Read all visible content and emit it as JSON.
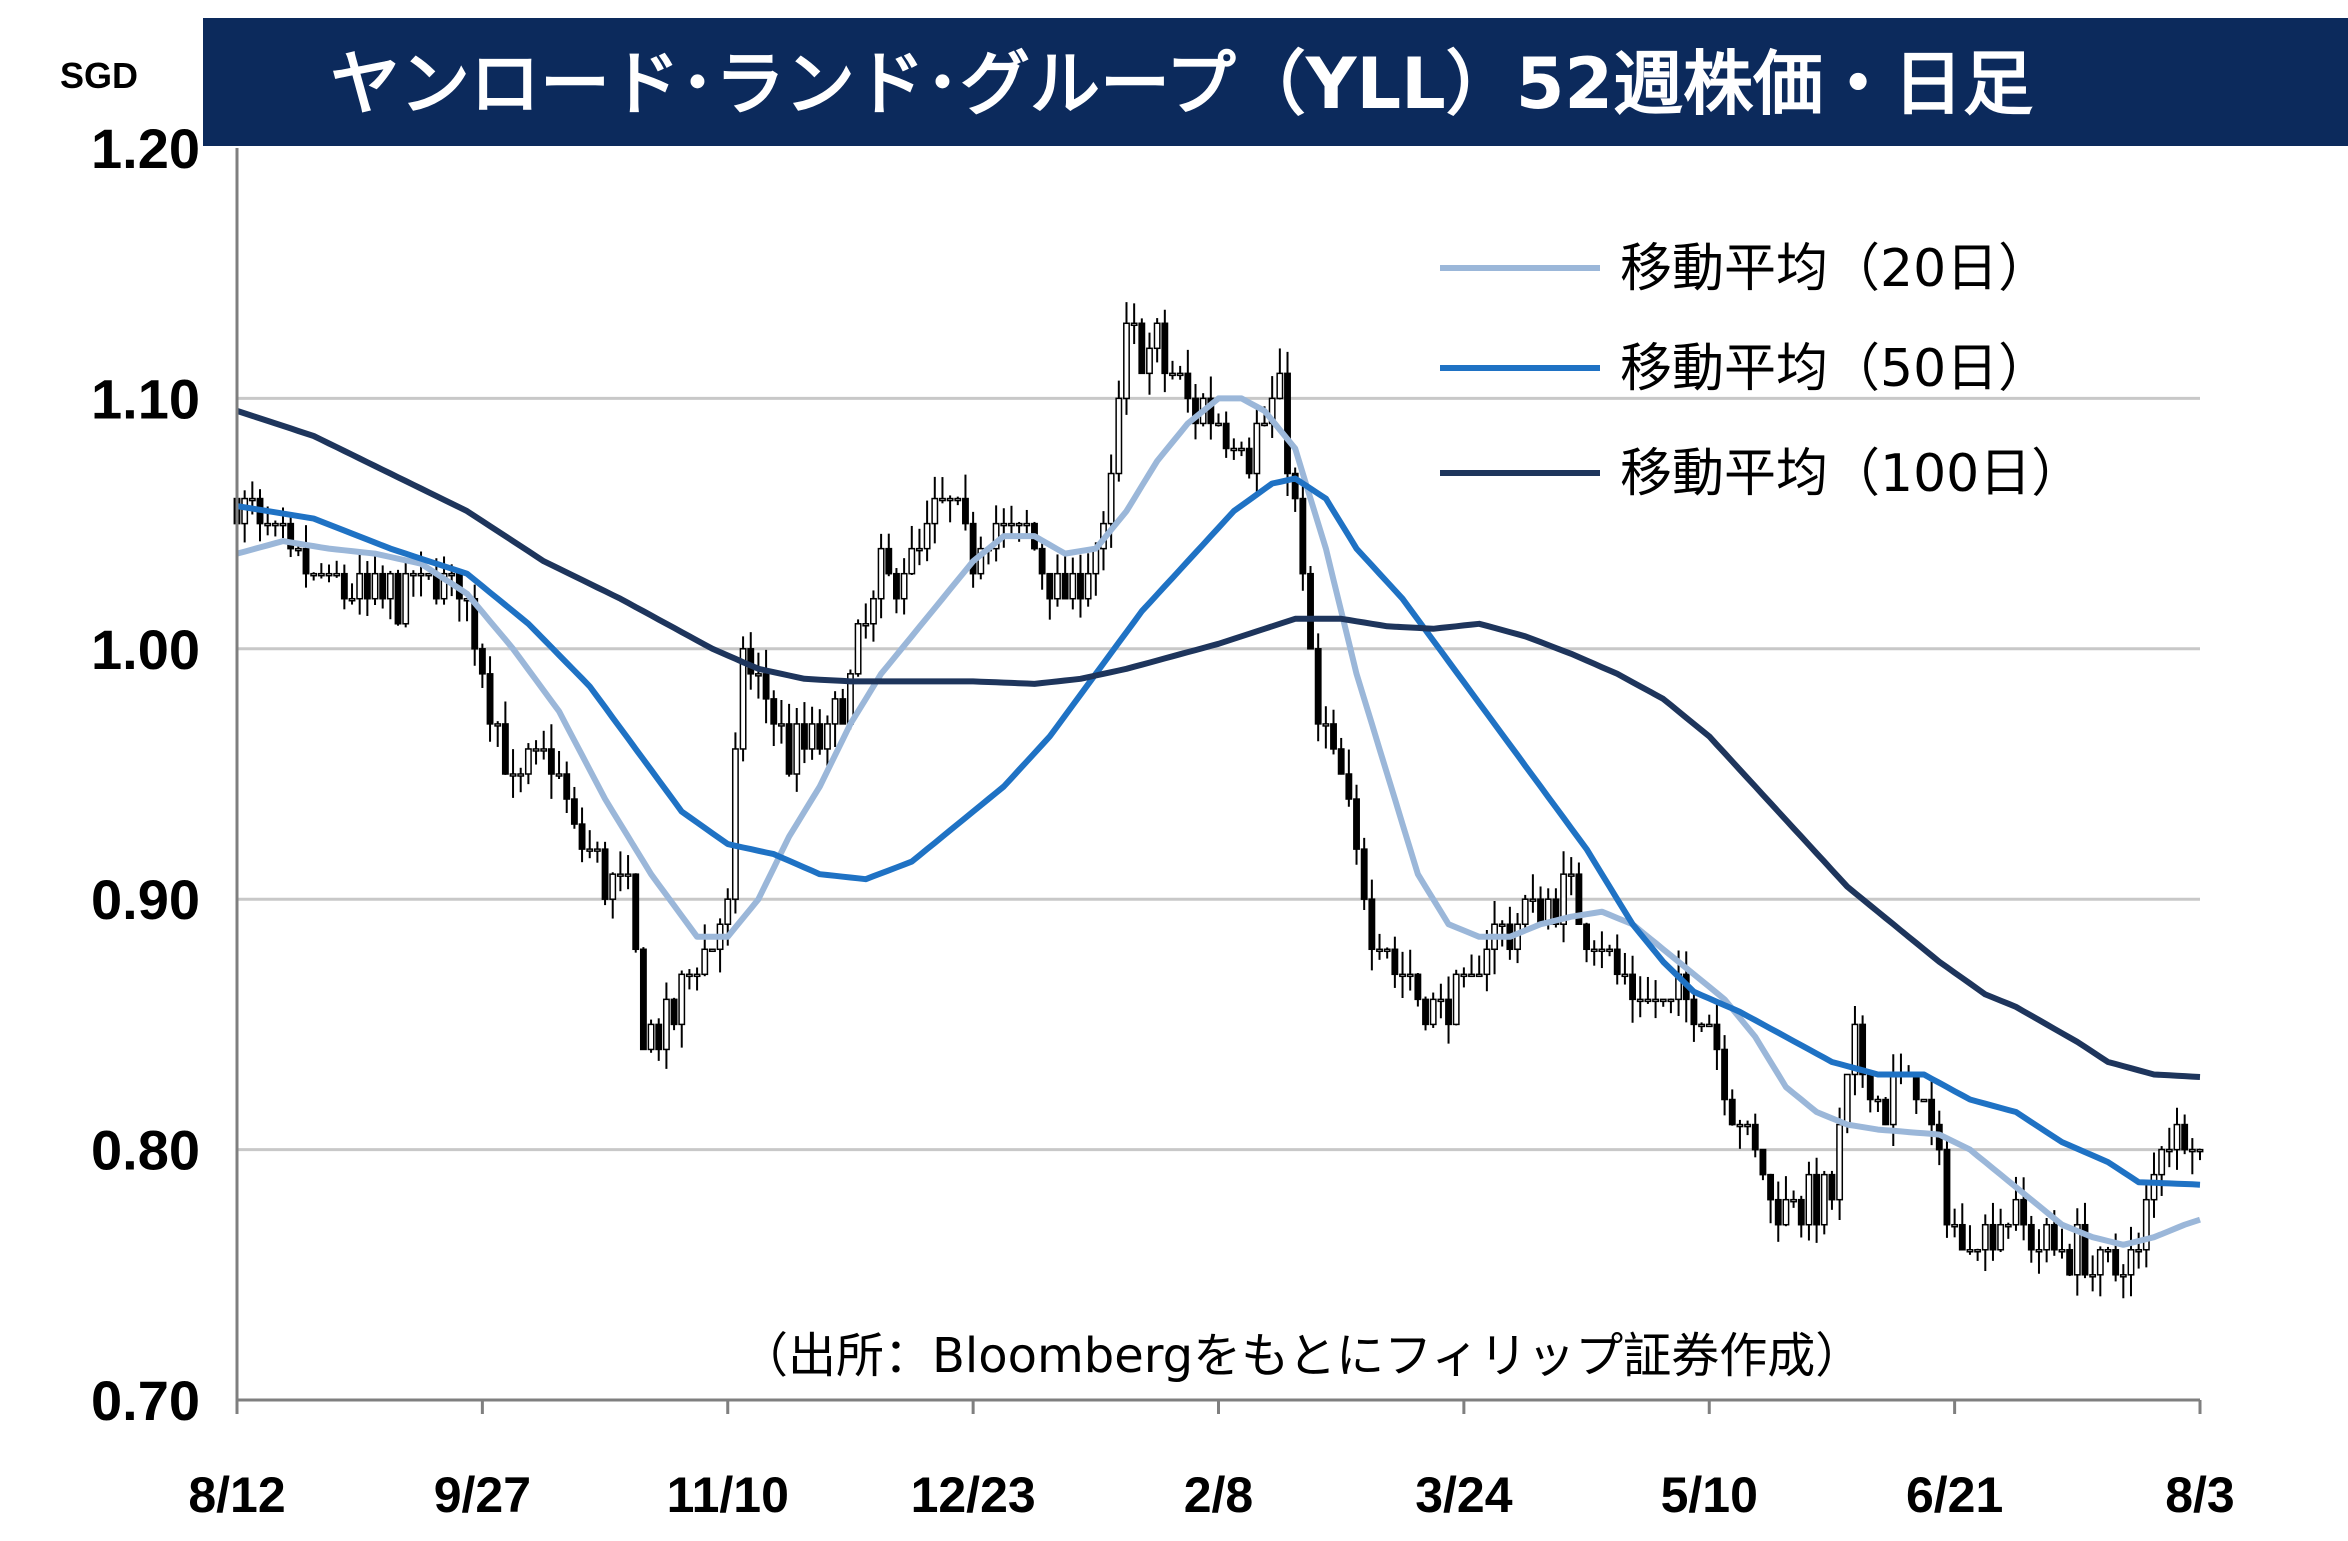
{
  "chart_data": {
    "type": "candlestick",
    "title": "ヤンロード･ランド･グループ（YLL）52週株価・日足",
    "unit": "SGD",
    "source": "（出所：Bloombergをもとにフィリップ証券作成）",
    "ylim": [
      0.7,
      1.2
    ],
    "y_ticks": [
      "1.20",
      "1.10",
      "1.00",
      "0.90",
      "0.80",
      "0.70"
    ],
    "y_tick_values": [
      1.2,
      1.1,
      1.0,
      0.9,
      0.8,
      0.7
    ],
    "x_ticks": [
      "8/12",
      "9/27",
      "11/10",
      "12/23",
      "2/8",
      "3/24",
      "5/10",
      "6/21",
      "8/3"
    ],
    "x_tick_index": [
      0,
      32,
      64,
      96,
      128,
      160,
      192,
      224,
      256
    ],
    "grid": true,
    "legend_position": "top-right",
    "colors": {
      "title_bg": "#0c2a5c",
      "ma20": "#9bb7d9",
      "ma50": "#1f72c4",
      "ma100": "#1e355c",
      "grid": "#c8c8c8",
      "candle": "#000000"
    },
    "close_anchors": [
      [
        0,
        1.06
      ],
      [
        5,
        1.04
      ],
      [
        10,
        1.03
      ],
      [
        15,
        1.02
      ],
      [
        20,
        1.02
      ],
      [
        25,
        1.03
      ],
      [
        30,
        1.02
      ],
      [
        33,
        0.98
      ],
      [
        36,
        0.94
      ],
      [
        40,
        0.96
      ],
      [
        44,
        0.93
      ],
      [
        48,
        0.91
      ],
      [
        51,
        0.9
      ],
      [
        53,
        0.85
      ],
      [
        56,
        0.85
      ],
      [
        59,
        0.87
      ],
      [
        62,
        0.88
      ],
      [
        64,
        0.9
      ],
      [
        66,
        1.0
      ],
      [
        69,
        0.98
      ],
      [
        72,
        0.96
      ],
      [
        76,
        0.96
      ],
      [
        80,
        0.99
      ],
      [
        84,
        1.03
      ],
      [
        88,
        1.03
      ],
      [
        92,
        1.06
      ],
      [
        96,
        1.04
      ],
      [
        100,
        1.05
      ],
      [
        104,
        1.04
      ],
      [
        108,
        1.02
      ],
      [
        113,
        1.04
      ],
      [
        116,
        1.12
      ],
      [
        120,
        1.12
      ],
      [
        124,
        1.1
      ],
      [
        128,
        1.09
      ],
      [
        132,
        1.08
      ],
      [
        136,
        1.1
      ],
      [
        139,
        1.03
      ],
      [
        141,
        0.97
      ],
      [
        144,
        0.95
      ],
      [
        148,
        0.89
      ],
      [
        152,
        0.87
      ],
      [
        156,
        0.86
      ],
      [
        160,
        0.86
      ],
      [
        163,
        0.88
      ],
      [
        166,
        0.89
      ],
      [
        170,
        0.9
      ],
      [
        174,
        0.9
      ],
      [
        178,
        0.88
      ],
      [
        182,
        0.86
      ],
      [
        188,
        0.86
      ],
      [
        192,
        0.85
      ],
      [
        196,
        0.81
      ],
      [
        200,
        0.78
      ],
      [
        204,
        0.78
      ],
      [
        208,
        0.78
      ],
      [
        211,
        0.84
      ],
      [
        215,
        0.82
      ],
      [
        219,
        0.83
      ],
      [
        222,
        0.79
      ],
      [
        225,
        0.76
      ],
      [
        228,
        0.77
      ],
      [
        232,
        0.77
      ],
      [
        236,
        0.76
      ],
      [
        240,
        0.76
      ],
      [
        244,
        0.75
      ],
      [
        248,
        0.76
      ],
      [
        251,
        0.81
      ],
      [
        254,
        0.81
      ],
      [
        256,
        0.8
      ]
    ],
    "ma20_anchors": [
      [
        0,
        1.038
      ],
      [
        6,
        1.043
      ],
      [
        12,
        1.04
      ],
      [
        18,
        1.038
      ],
      [
        24,
        1.034
      ],
      [
        30,
        1.022
      ],
      [
        36,
        1.0
      ],
      [
        42,
        0.975
      ],
      [
        48,
        0.94
      ],
      [
        54,
        0.91
      ],
      [
        60,
        0.885
      ],
      [
        64,
        0.885
      ],
      [
        68,
        0.9
      ],
      [
        72,
        0.925
      ],
      [
        76,
        0.945
      ],
      [
        80,
        0.97
      ],
      [
        84,
        0.99
      ],
      [
        88,
        1.005
      ],
      [
        92,
        1.02
      ],
      [
        96,
        1.035
      ],
      [
        100,
        1.045
      ],
      [
        104,
        1.045
      ],
      [
        108,
        1.038
      ],
      [
        112,
        1.04
      ],
      [
        116,
        1.055
      ],
      [
        120,
        1.075
      ],
      [
        124,
        1.09
      ],
      [
        128,
        1.1
      ],
      [
        131,
        1.1
      ],
      [
        134,
        1.095
      ],
      [
        138,
        1.08
      ],
      [
        142,
        1.04
      ],
      [
        146,
        0.99
      ],
      [
        150,
        0.95
      ],
      [
        154,
        0.91
      ],
      [
        158,
        0.89
      ],
      [
        162,
        0.885
      ],
      [
        166,
        0.885
      ],
      [
        170,
        0.89
      ],
      [
        174,
        0.893
      ],
      [
        178,
        0.895
      ],
      [
        182,
        0.89
      ],
      [
        186,
        0.88
      ],
      [
        190,
        0.87
      ],
      [
        194,
        0.86
      ],
      [
        198,
        0.845
      ],
      [
        202,
        0.825
      ],
      [
        206,
        0.815
      ],
      [
        210,
        0.81
      ],
      [
        214,
        0.808
      ],
      [
        218,
        0.807
      ],
      [
        222,
        0.806
      ],
      [
        226,
        0.8
      ],
      [
        230,
        0.79
      ],
      [
        234,
        0.78
      ],
      [
        238,
        0.77
      ],
      [
        242,
        0.765
      ],
      [
        246,
        0.762
      ],
      [
        250,
        0.765
      ],
      [
        254,
        0.77
      ],
      [
        256,
        0.772
      ]
    ],
    "ma50_anchors": [
      [
        0,
        1.057
      ],
      [
        10,
        1.052
      ],
      [
        20,
        1.04
      ],
      [
        30,
        1.03
      ],
      [
        38,
        1.01
      ],
      [
        46,
        0.985
      ],
      [
        52,
        0.96
      ],
      [
        58,
        0.935
      ],
      [
        64,
        0.922
      ],
      [
        70,
        0.918
      ],
      [
        76,
        0.91
      ],
      [
        82,
        0.908
      ],
      [
        88,
        0.915
      ],
      [
        94,
        0.93
      ],
      [
        100,
        0.945
      ],
      [
        106,
        0.965
      ],
      [
        112,
        0.99
      ],
      [
        118,
        1.015
      ],
      [
        124,
        1.035
      ],
      [
        130,
        1.055
      ],
      [
        135,
        1.066
      ],
      [
        138,
        1.068
      ],
      [
        142,
        1.06
      ],
      [
        146,
        1.04
      ],
      [
        152,
        1.02
      ],
      [
        158,
        0.995
      ],
      [
        164,
        0.97
      ],
      [
        170,
        0.945
      ],
      [
        176,
        0.92
      ],
      [
        182,
        0.89
      ],
      [
        186,
        0.875
      ],
      [
        190,
        0.863
      ],
      [
        196,
        0.855
      ],
      [
        202,
        0.845
      ],
      [
        208,
        0.835
      ],
      [
        214,
        0.83
      ],
      [
        220,
        0.83
      ],
      [
        226,
        0.82
      ],
      [
        232,
        0.815
      ],
      [
        238,
        0.803
      ],
      [
        244,
        0.795
      ],
      [
        248,
        0.787
      ],
      [
        256,
        0.786
      ]
    ],
    "ma100_anchors": [
      [
        0,
        1.095
      ],
      [
        10,
        1.085
      ],
      [
        20,
        1.07
      ],
      [
        30,
        1.055
      ],
      [
        40,
        1.035
      ],
      [
        50,
        1.02
      ],
      [
        56,
        1.01
      ],
      [
        62,
        1.0
      ],
      [
        68,
        0.992
      ],
      [
        74,
        0.988
      ],
      [
        80,
        0.987
      ],
      [
        88,
        0.987
      ],
      [
        96,
        0.987
      ],
      [
        104,
        0.986
      ],
      [
        110,
        0.988
      ],
      [
        116,
        0.992
      ],
      [
        122,
        0.997
      ],
      [
        128,
        1.002
      ],
      [
        134,
        1.008
      ],
      [
        138,
        1.012
      ],
      [
        144,
        1.012
      ],
      [
        150,
        1.009
      ],
      [
        156,
        1.008
      ],
      [
        162,
        1.01
      ],
      [
        168,
        1.005
      ],
      [
        174,
        0.998
      ],
      [
        180,
        0.99
      ],
      [
        186,
        0.98
      ],
      [
        192,
        0.965
      ],
      [
        198,
        0.945
      ],
      [
        204,
        0.925
      ],
      [
        210,
        0.905
      ],
      [
        216,
        0.89
      ],
      [
        222,
        0.875
      ],
      [
        228,
        0.862
      ],
      [
        232,
        0.857
      ],
      [
        236,
        0.85
      ],
      [
        240,
        0.843
      ],
      [
        244,
        0.835
      ],
      [
        250,
        0.83
      ],
      [
        256,
        0.829
      ]
    ],
    "series": [
      {
        "name": "移動平均（20日）",
        "key": "ma20"
      },
      {
        "name": "移動平均（50日）",
        "key": "ma50"
      },
      {
        "name": "移動平均（100日）",
        "key": "ma100"
      }
    ]
  }
}
